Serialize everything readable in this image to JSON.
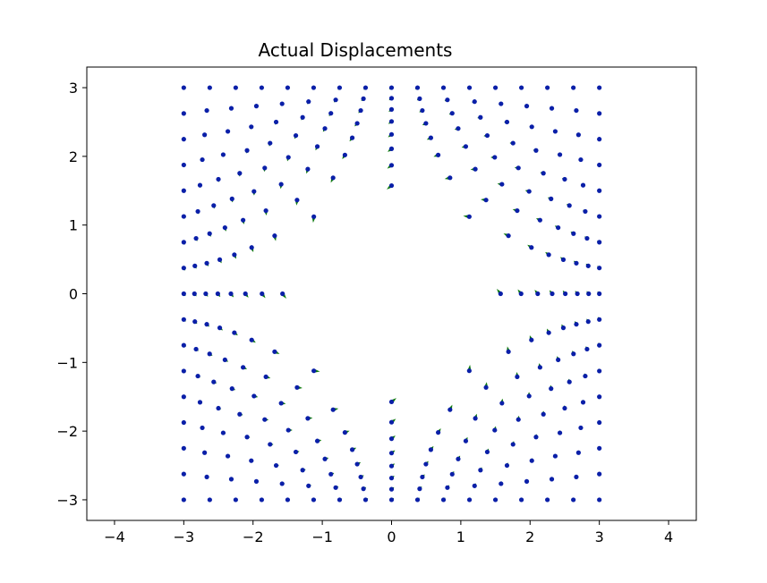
{
  "chart_data": {
    "type": "quiver",
    "title": "Actual Displacements",
    "xlabel": "",
    "ylabel": "",
    "xlim": [
      -4.4,
      4.4
    ],
    "ylim": [
      -3.3,
      3.3
    ],
    "grid": false,
    "aspect": "equal",
    "x_ticks": [
      -4,
      -3,
      -2,
      -1,
      0,
      1,
      2,
      3,
      4
    ],
    "x_tick_labels": [
      "−4",
      "−3",
      "−2",
      "−1",
      "0",
      "1",
      "2",
      "3",
      "4"
    ],
    "y_ticks": [
      -3,
      -2,
      -1,
      0,
      1,
      2,
      3
    ],
    "y_tick_labels": [
      "−3",
      "−2",
      "−1",
      "0",
      "1",
      "2",
      "3"
    ],
    "lattice": {
      "x_range": [
        -3,
        3
      ],
      "y_range": [
        -3,
        3
      ],
      "n": 17,
      "hole_radius": 1.0
    },
    "mapping": {
      "description_free": true,
      "radial_exponent": 0.6,
      "angular_strength": 0.85
    },
    "colors": {
      "points": "#0a1fa8",
      "arrows": "#0f7a0f",
      "axes": "#000000",
      "background": "#ffffff"
    }
  }
}
